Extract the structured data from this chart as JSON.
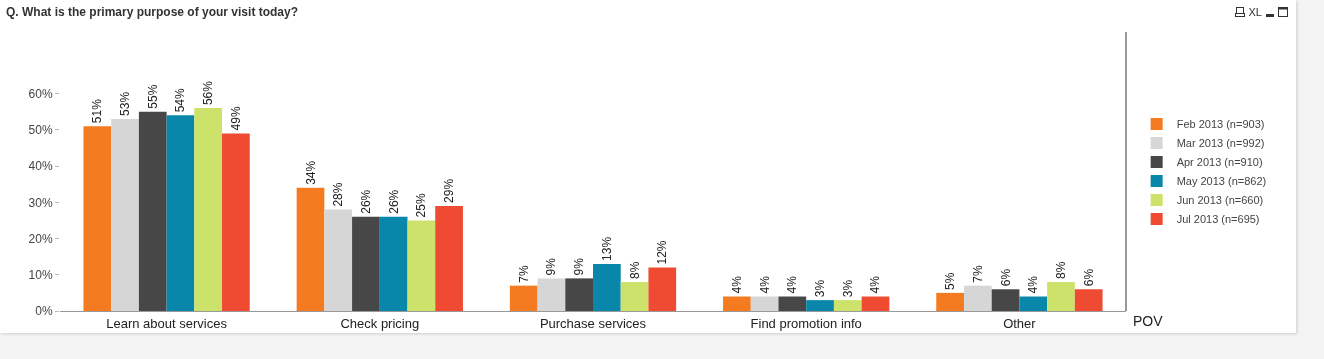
{
  "chart_data": {
    "type": "bar",
    "title": "Q. What is the primary purpose of your visit today?",
    "xlabel": "POV",
    "categories": [
      "Learn about services",
      "Check pricing",
      "Purchase services",
      "Find promotion info",
      "Other"
    ],
    "series": [
      {
        "name": "Feb 2013 (n=903)",
        "color": "#f47b20",
        "values": [
          51,
          34,
          7,
          4,
          5
        ],
        "value_labels": [
          "51%",
          "34%",
          "7%",
          "4%",
          "5%"
        ]
      },
      {
        "name": "Mar 2013 (n=992)",
        "color": "#d6d6d6",
        "values": [
          53,
          28,
          9,
          4,
          7
        ],
        "value_labels": [
          "53%",
          "28%",
          "9%",
          "4%",
          "7%"
        ]
      },
      {
        "name": "Apr 2013 (n=910)",
        "color": "#474747",
        "values": [
          55,
          26,
          9,
          4,
          6
        ],
        "value_labels": [
          "55%",
          "26%",
          "9%",
          "4%",
          "6%"
        ]
      },
      {
        "name": "May 2013 (n=862)",
        "color": "#0987aa",
        "values": [
          54,
          26,
          13,
          3,
          4
        ],
        "value_labels": [
          "54%",
          "26%",
          "13%",
          "3%",
          "4%"
        ]
      },
      {
        "name": "Jun 2013 (n=660)",
        "color": "#cde26a",
        "values": [
          56,
          25,
          8,
          3,
          8
        ],
        "value_labels": [
          "56%",
          "25%",
          "8%",
          "3%",
          "8%"
        ]
      },
      {
        "name": "Jul 2013 (n=695)",
        "color": "#ef4b32",
        "values": [
          49,
          29,
          12,
          4,
          6
        ],
        "value_labels": [
          "49%",
          "29%",
          "12%",
          "4%",
          "6%"
        ]
      }
    ],
    "ylim": [
      0,
      77
    ],
    "yticks": [
      {
        "value": 0,
        "label": "0%"
      },
      {
        "value": 10,
        "label": "10%"
      },
      {
        "value": 20,
        "label": "20%"
      },
      {
        "value": 30,
        "label": "30%"
      },
      {
        "value": 40,
        "label": "40%"
      },
      {
        "value": 50,
        "label": "50%"
      },
      {
        "value": 60,
        "label": "60%"
      }
    ],
    "grid": false,
    "legend": "right",
    "annotations": [
      "XL"
    ]
  }
}
